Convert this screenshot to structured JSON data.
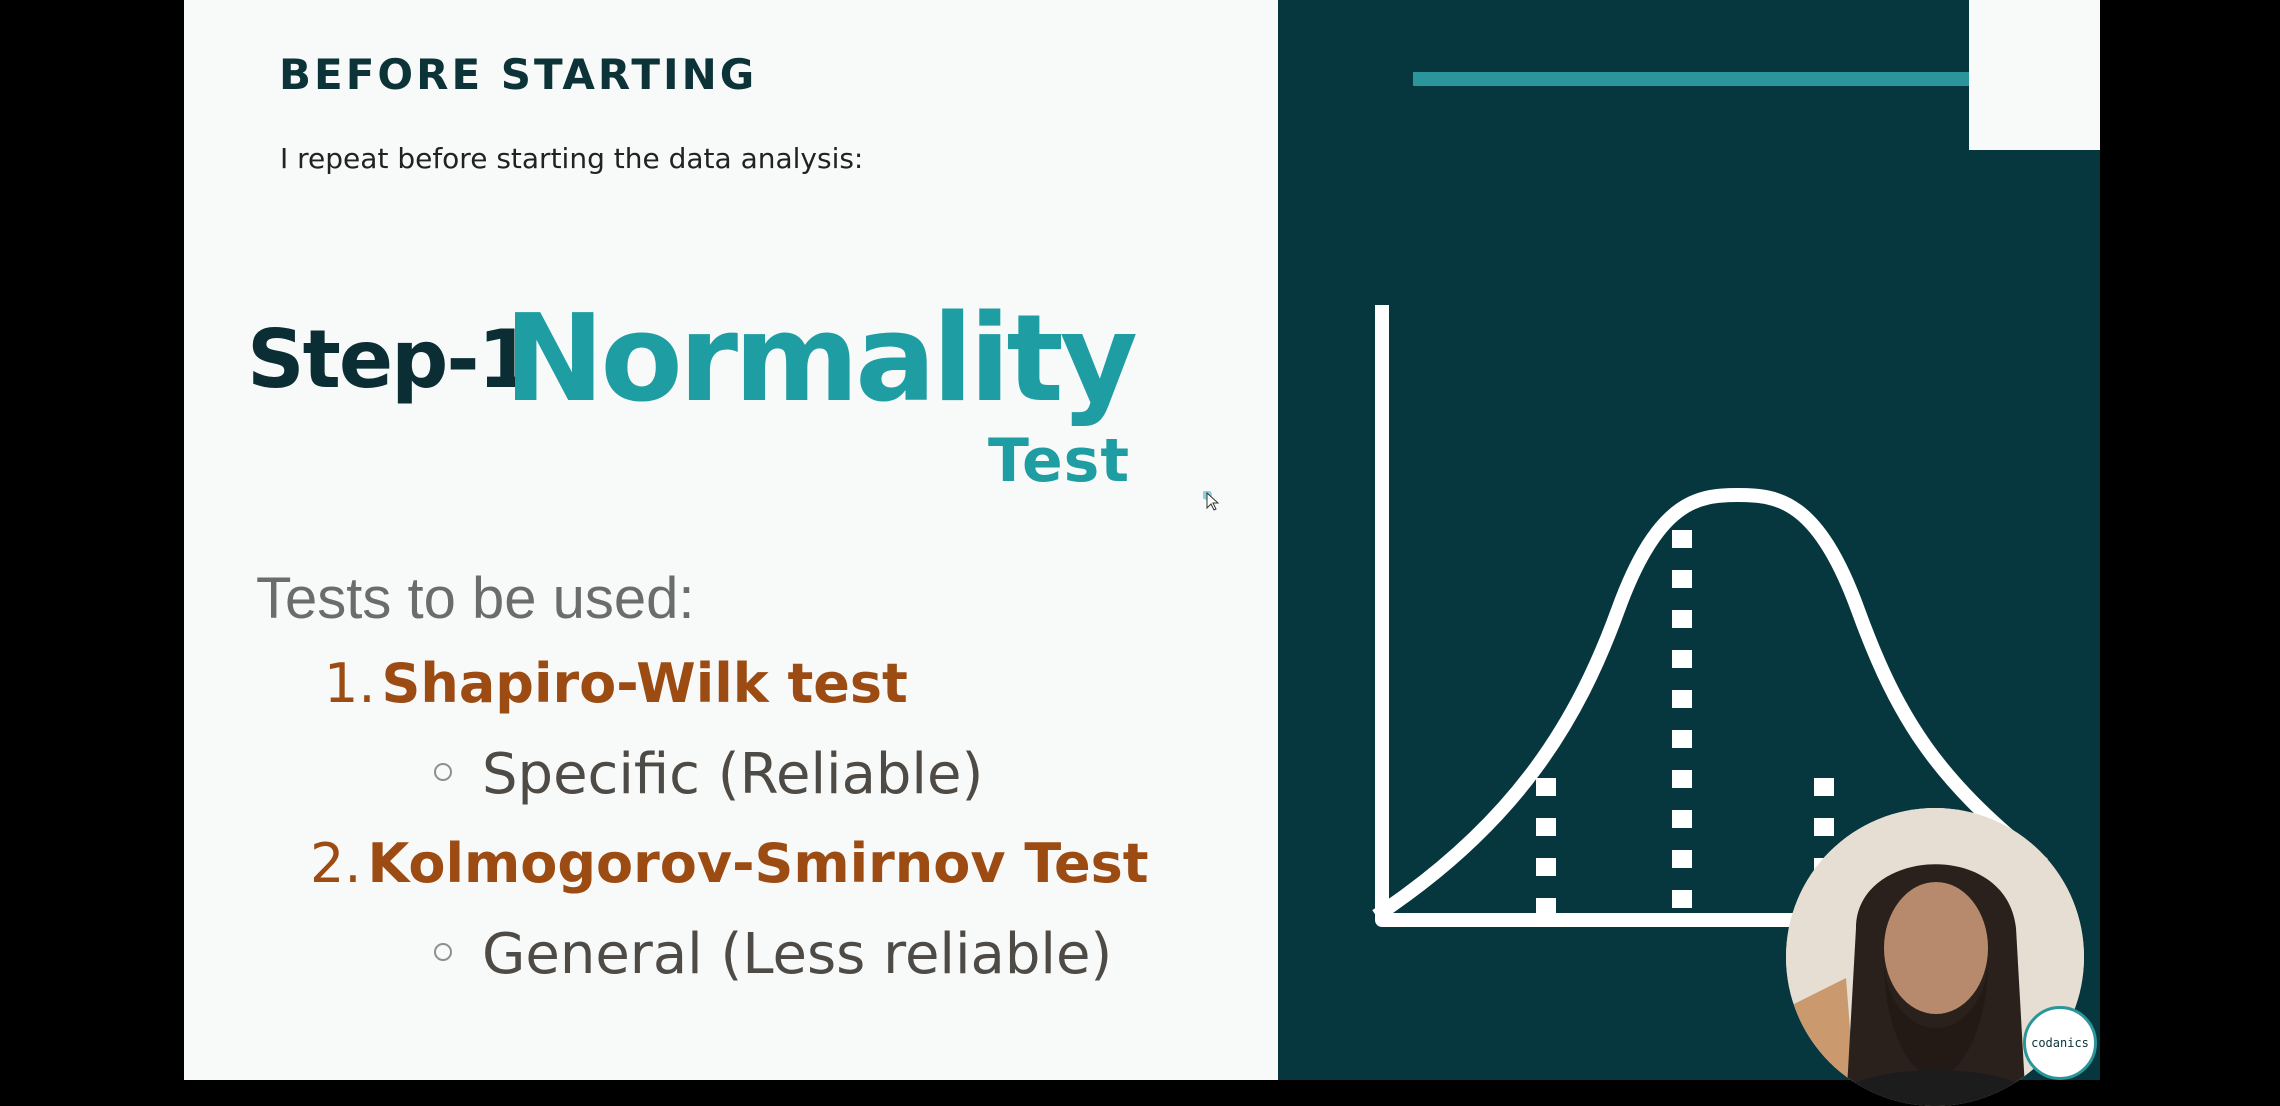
{
  "slide": {
    "heading": "BEFORE STARTING",
    "subheading": "I repeat before starting the data analysis:",
    "step_label": "Step-1",
    "step_title": "Normality",
    "step_subtitle": "Test",
    "tests_label": "Tests to be used:",
    "tests": [
      {
        "number": "1.",
        "name": "Shapiro-Wilk test",
        "note": "Specific (Reliable)"
      },
      {
        "number": "2.",
        "name": "Kolmogorov-Smirnov Test",
        "note": "General (Less reliable)"
      }
    ]
  },
  "logo": {
    "text": "codanics"
  },
  "colors": {
    "dark_teal": "#07373e",
    "accent_teal": "#2a969c",
    "title_teal": "#1e9da3",
    "test_brown": "#9c4c12",
    "slide_bg": "#f8f9f9"
  },
  "icons": [
    "normal-distribution-icon",
    "mouse-cursor-icon",
    "presenter-webcam",
    "codanics-logo-icon"
  ]
}
